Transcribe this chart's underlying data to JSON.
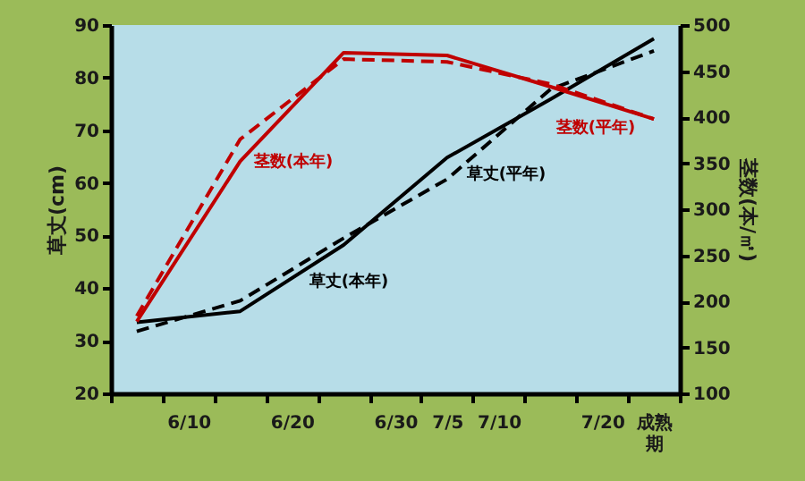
{
  "chart_data": {
    "type": "line",
    "ylabel": "草丈(cm)",
    "y2label": "茎数(本/㎡)",
    "categories": [
      null,
      "6/10",
      null,
      "6/20",
      null,
      "6/30",
      "7/5",
      "7/10",
      null,
      "7/20",
      "成熟期"
    ],
    "ylim": [
      20,
      90
    ],
    "yticks": [
      20,
      30,
      40,
      50,
      60,
      70,
      80,
      90
    ],
    "y2lim": [
      100,
      500
    ],
    "y2ticks": [
      100,
      150,
      200,
      250,
      300,
      350,
      400,
      450,
      500
    ],
    "series": [
      {
        "name": "草丈(本年)",
        "color": "#000000",
        "line_style": "solid",
        "values": [
          33.5,
          null,
          35.6,
          null,
          48.2,
          null,
          64.8,
          null,
          75.9,
          null,
          87.4
        ]
      },
      {
        "name": "草丈(平年)",
        "color": "#000000",
        "line_style": "dashed",
        "values": [
          31.8,
          null,
          37.6,
          null,
          49.5,
          null,
          60.7,
          null,
          77.8,
          null,
          85.1
        ]
      },
      {
        "name": "茎数(本年)",
        "color": "#c00000",
        "line_style": "solid",
        "axis": "y2",
        "values": [
          178,
          null,
          352,
          null,
          470,
          null,
          467,
          null,
          433,
          null,
          398
        ]
      },
      {
        "name": "茎数(平年)",
        "color": "#c00000",
        "line_style": "dashed",
        "axis": "y2",
        "values": [
          184,
          null,
          376,
          null,
          463,
          null,
          460,
          null,
          436,
          null,
          398
        ]
      }
    ],
    "grid": false,
    "marker": "none"
  }
}
